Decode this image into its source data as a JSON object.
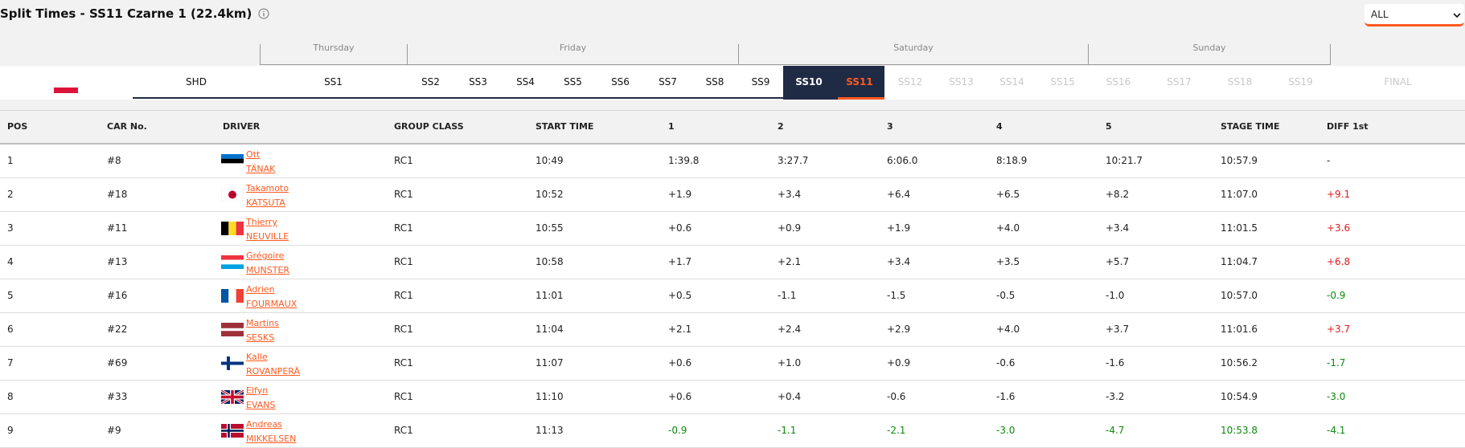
{
  "page": {
    "title": "Split Times - SS11 Czarne 1 (22.4km)",
    "info_icon": "info-icon",
    "filter_select": {
      "value": "ALL",
      "icon": "chevron-down-icon"
    }
  },
  "colors": {
    "accent": "#ff5a1f",
    "navy": "#1f2a44",
    "positive": "#e21b1b",
    "negative": "#0c8a0c"
  },
  "days": [
    {
      "label": "Thursday"
    },
    {
      "label": "Friday"
    },
    {
      "label": "Saturday"
    },
    {
      "label": "Sunday"
    }
  ],
  "stages": {
    "country_flag": "poland-flag",
    "items": [
      {
        "label": "SHD",
        "state": "normal"
      },
      {
        "label": "SS1",
        "state": "normal"
      },
      {
        "label": "SS2",
        "state": "normal"
      },
      {
        "label": "SS3",
        "state": "normal"
      },
      {
        "label": "SS4",
        "state": "normal"
      },
      {
        "label": "SS5",
        "state": "normal"
      },
      {
        "label": "SS6",
        "state": "normal"
      },
      {
        "label": "SS7",
        "state": "normal"
      },
      {
        "label": "SS8",
        "state": "normal"
      },
      {
        "label": "SS9",
        "state": "normal"
      },
      {
        "label": "SS10",
        "state": "dark"
      },
      {
        "label": "SS11",
        "state": "active"
      },
      {
        "label": "SS12",
        "state": "disabled"
      },
      {
        "label": "SS13",
        "state": "disabled"
      },
      {
        "label": "SS14",
        "state": "disabled"
      },
      {
        "label": "SS15",
        "state": "disabled"
      },
      {
        "label": "SS16",
        "state": "disabled"
      },
      {
        "label": "SS17",
        "state": "disabled"
      },
      {
        "label": "SS18",
        "state": "disabled"
      },
      {
        "label": "SS19",
        "state": "disabled"
      },
      {
        "label": "FINAL",
        "state": "disabled"
      }
    ]
  },
  "table": {
    "headers": [
      "POS",
      "CAR No.",
      "DRIVER",
      "GROUP CLASS",
      "START TIME",
      "1",
      "2",
      "3",
      "4",
      "5",
      "STAGE TIME",
      "DIFF 1st"
    ],
    "rows": [
      {
        "pos": "1",
        "car": "#8",
        "first": "Ott",
        "last": "TÄNAK",
        "flag": "estonia",
        "group": "RC1",
        "start": "10:49",
        "s1": "1:39.8",
        "s2": "3:27.7",
        "s3": "6:06.0",
        "s4": "8:18.9",
        "s5": "10:21.7",
        "stage": "10:57.9",
        "diff": "-"
      },
      {
        "pos": "2",
        "car": "#18",
        "first": "Takamoto",
        "last": "KATSUTA",
        "flag": "japan",
        "group": "RC1",
        "start": "10:52",
        "s1": "+1.9",
        "s2": "+3.4",
        "s3": "+6.4",
        "s4": "+6.5",
        "s5": "+8.2",
        "stage": "11:07.0",
        "diff": "+9.1"
      },
      {
        "pos": "3",
        "car": "#11",
        "first": "Thierry",
        "last": "NEUVILLE",
        "flag": "belgium",
        "group": "RC1",
        "start": "10:55",
        "s1": "+0.6",
        "s2": "+0.9",
        "s3": "+1.9",
        "s4": "+4.0",
        "s5": "+3.4",
        "stage": "11:01.5",
        "diff": "+3.6"
      },
      {
        "pos": "4",
        "car": "#13",
        "first": "Grégoire",
        "last": "MUNSTER",
        "flag": "luxembourg",
        "group": "RC1",
        "start": "10:58",
        "s1": "+1.7",
        "s2": "+2.1",
        "s3": "+3.4",
        "s4": "+3.5",
        "s5": "+5.7",
        "stage": "11:04.7",
        "diff": "+6.8"
      },
      {
        "pos": "5",
        "car": "#16",
        "first": "Adrien",
        "last": "FOURMAUX",
        "flag": "france",
        "group": "RC1",
        "start": "11:01",
        "s1": "+0.5",
        "s2": "-1.1",
        "s3": "-1.5",
        "s4": "-0.5",
        "s5": "-1.0",
        "stage": "10:57.0",
        "diff": "-0.9"
      },
      {
        "pos": "6",
        "car": "#22",
        "first": "Martins",
        "last": "SESKS",
        "flag": "latvia",
        "group": "RC1",
        "start": "11:04",
        "s1": "+2.1",
        "s2": "+2.4",
        "s3": "+2.9",
        "s4": "+4.0",
        "s5": "+3.7",
        "stage": "11:01.6",
        "diff": "+3.7"
      },
      {
        "pos": "7",
        "car": "#69",
        "first": "Kalle",
        "last": "ROVANPERÄ",
        "flag": "finland",
        "group": "RC1",
        "start": "11:07",
        "s1": "+0.6",
        "s2": "+1.0",
        "s3": "+0.9",
        "s4": "-0.6",
        "s5": "-1.6",
        "stage": "10:56.2",
        "diff": "-1.7"
      },
      {
        "pos": "8",
        "car": "#33",
        "first": "Elfyn",
        "last": "EVANS",
        "flag": "uk",
        "group": "RC1",
        "start": "11:10",
        "s1": "+0.6",
        "s2": "+0.4",
        "s3": "-0.6",
        "s4": "-1.6",
        "s5": "-3.2",
        "stage": "10:54.9",
        "diff": "-3.0"
      },
      {
        "pos": "9",
        "car": "#9",
        "first": "Andreas",
        "last": "MIKKELSEN",
        "flag": "norway",
        "group": "RC1",
        "start": "11:13",
        "s1": "-0.9",
        "s2": "-1.1",
        "s3": "-2.1",
        "s4": "-3.0",
        "s5": "-4.7",
        "stage": "10:53.8",
        "diff": "-4.1"
      }
    ]
  }
}
